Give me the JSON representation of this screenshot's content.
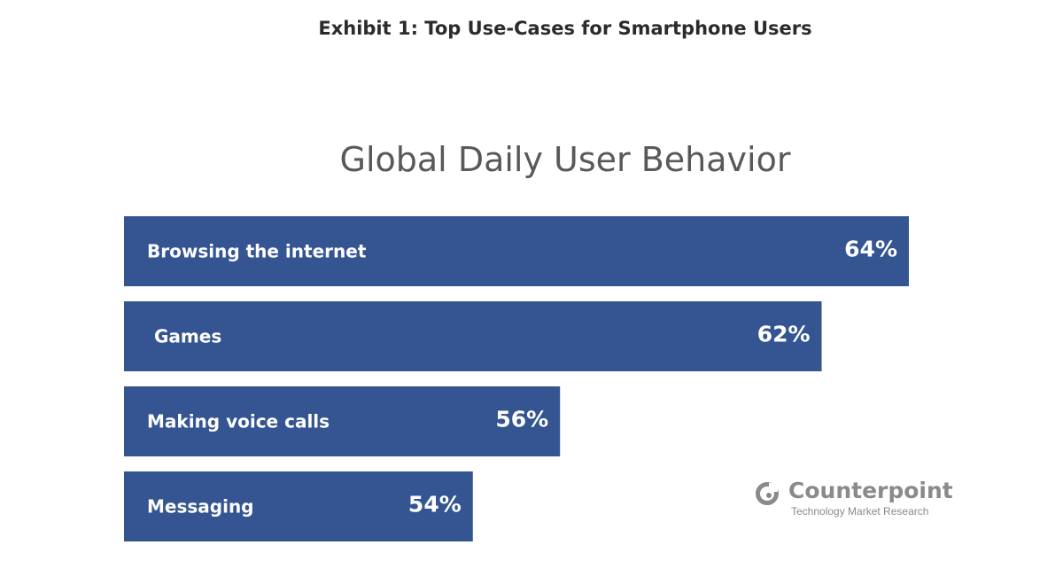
{
  "exhibit_title": "Exhibit 1: Top Use-Cases for Smartphone Users",
  "logo": {
    "name": "Counterpoint",
    "tagline": "Technology Market Research"
  },
  "colors": {
    "bar": "#345592",
    "text_on_bar": "#ffffff"
  },
  "chart_data": {
    "type": "bar",
    "orientation": "horizontal",
    "title": "Global Daily User Behavior",
    "categories": [
      "Browsing the internet",
      "Games",
      "Making voice calls",
      "Messaging"
    ],
    "values": [
      64,
      62,
      56,
      54
    ],
    "value_labels": [
      "64%",
      "62%",
      "56%",
      "54%"
    ],
    "unit": "%",
    "xlim": [
      46,
      64
    ],
    "grid": false,
    "legend": "none"
  }
}
